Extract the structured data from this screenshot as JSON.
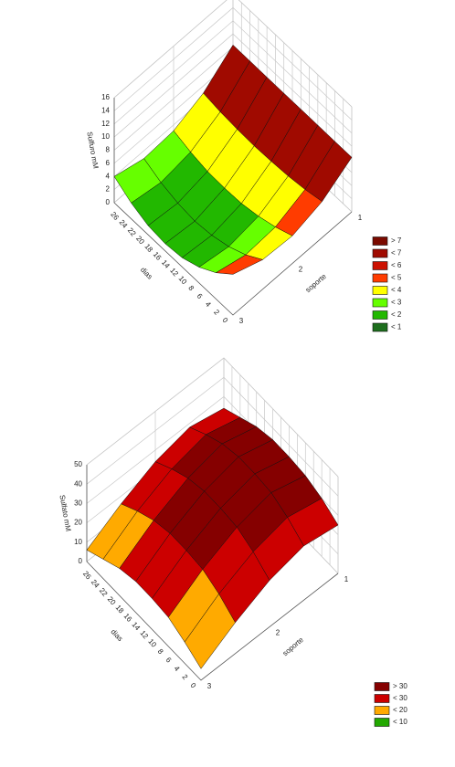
{
  "chart_data": [
    {
      "type": "surface3d",
      "zlabel": "Sulfuro mM",
      "xlabel": "soporte",
      "ylabel": "dias",
      "x": [
        1,
        1.5,
        2,
        2.5,
        3
      ],
      "y": [
        0,
        4,
        8,
        12,
        16,
        20,
        24,
        28
      ],
      "values": [
        [
          8.3,
          8.3,
          8.3,
          8.3,
          8.3,
          8.3,
          8.3,
          8.3
        ],
        [
          5.5,
          4.9,
          4.5,
          4.3,
          4.2,
          4.3,
          4.5,
          4.9
        ],
        [
          4.2,
          3.1,
          2.3,
          1.8,
          1.7,
          1.8,
          2.3,
          3.1
        ],
        [
          4.5,
          2.8,
          1.6,
          0.9,
          0.6,
          0.9,
          1.6,
          2.8
        ],
        [
          6.2,
          4.0,
          2.4,
          1.4,
          1.1,
          1.4,
          2.4,
          4.0
        ]
      ],
      "xlim": [
        1,
        3
      ],
      "xticks": [
        1,
        2,
        3
      ],
      "ylim": [
        0,
        28
      ],
      "yticks": [
        0,
        2,
        4,
        6,
        8,
        10,
        12,
        14,
        16,
        18,
        20,
        22,
        24,
        26
      ],
      "zlim": [
        0,
        16
      ],
      "zticks": [
        0,
        2,
        4,
        6,
        8,
        10,
        12,
        14,
        16
      ],
      "legend": [
        {
          "value": 7,
          "label": "> 7",
          "color": "#7a0a00"
        },
        {
          "value": 7,
          "label": "< 7",
          "color": "#a00a00"
        },
        {
          "value": 6,
          "label": "< 6",
          "color": "#cc1100"
        },
        {
          "value": 5,
          "label": "< 5",
          "color": "#ff3c00"
        },
        {
          "value": 4,
          "label": "< 4",
          "color": "#ffff00"
        },
        {
          "value": 3,
          "label": "< 3",
          "color": "#66ff00"
        },
        {
          "value": 2,
          "label": "< 2",
          "color": "#22b800"
        },
        {
          "value": 1,
          "label": "< 1",
          "color": "#1d6e1d"
        }
      ]
    },
    {
      "type": "surface3d",
      "zlabel": "Sulfato mM",
      "xlabel": "soporte",
      "ylabel": "dias",
      "x": [
        1,
        1.5,
        2,
        2.5,
        3
      ],
      "y": [
        0,
        4,
        8,
        12,
        16,
        20,
        24,
        28
      ],
      "values": [
        [
          25,
          30,
          33,
          34,
          34,
          32,
          28,
          24
        ],
        [
          28,
          34,
          38,
          39,
          39,
          37,
          33,
          28
        ],
        [
          24,
          30,
          34,
          35,
          35,
          33,
          29,
          24
        ],
        [
          16,
          22,
          26,
          27,
          27,
          25,
          21,
          16
        ],
        [
          6,
          11,
          15,
          16,
          16,
          14,
          10,
          6
        ]
      ],
      "xlim": [
        1,
        3
      ],
      "xticks": [
        1,
        2,
        3
      ],
      "ylim": [
        0,
        28
      ],
      "yticks": [
        0,
        2,
        4,
        6,
        8,
        10,
        12,
        14,
        16,
        18,
        20,
        22,
        24,
        26
      ],
      "zlim": [
        0,
        50
      ],
      "zticks": [
        0,
        10,
        20,
        30,
        40,
        50
      ],
      "legend": [
        {
          "value": 30,
          "label": "> 30",
          "color": "#850000"
        },
        {
          "value": 30,
          "label": "< 30",
          "color": "#cc0000"
        },
        {
          "value": 20,
          "label": "< 20",
          "color": "#ffaa00"
        },
        {
          "value": 10,
          "label": "< 10",
          "color": "#22a800"
        }
      ]
    }
  ]
}
